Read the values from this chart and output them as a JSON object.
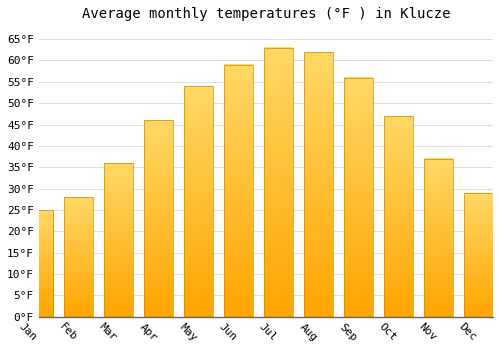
{
  "title": "Average monthly temperatures (°F ) in Klucze",
  "months": [
    "Jan",
    "Feb",
    "Mar",
    "Apr",
    "May",
    "Jun",
    "Jul",
    "Aug",
    "Sep",
    "Oct",
    "Nov",
    "Dec"
  ],
  "values": [
    25,
    28,
    36,
    46,
    54,
    59,
    63,
    62,
    56,
    47,
    37,
    29
  ],
  "bar_color_top": "#FFD966",
  "bar_color_bottom": "#FFA500",
  "bar_edge_color": "#CC8800",
  "background_color": "#FFFFFF",
  "grid_color": "#DDDDDD",
  "ylim": [
    0,
    68
  ],
  "yticks": [
    0,
    5,
    10,
    15,
    20,
    25,
    30,
    35,
    40,
    45,
    50,
    55,
    60,
    65
  ],
  "title_fontsize": 10,
  "tick_fontsize": 8,
  "font_family": "monospace",
  "xlabel_rotation": -45
}
